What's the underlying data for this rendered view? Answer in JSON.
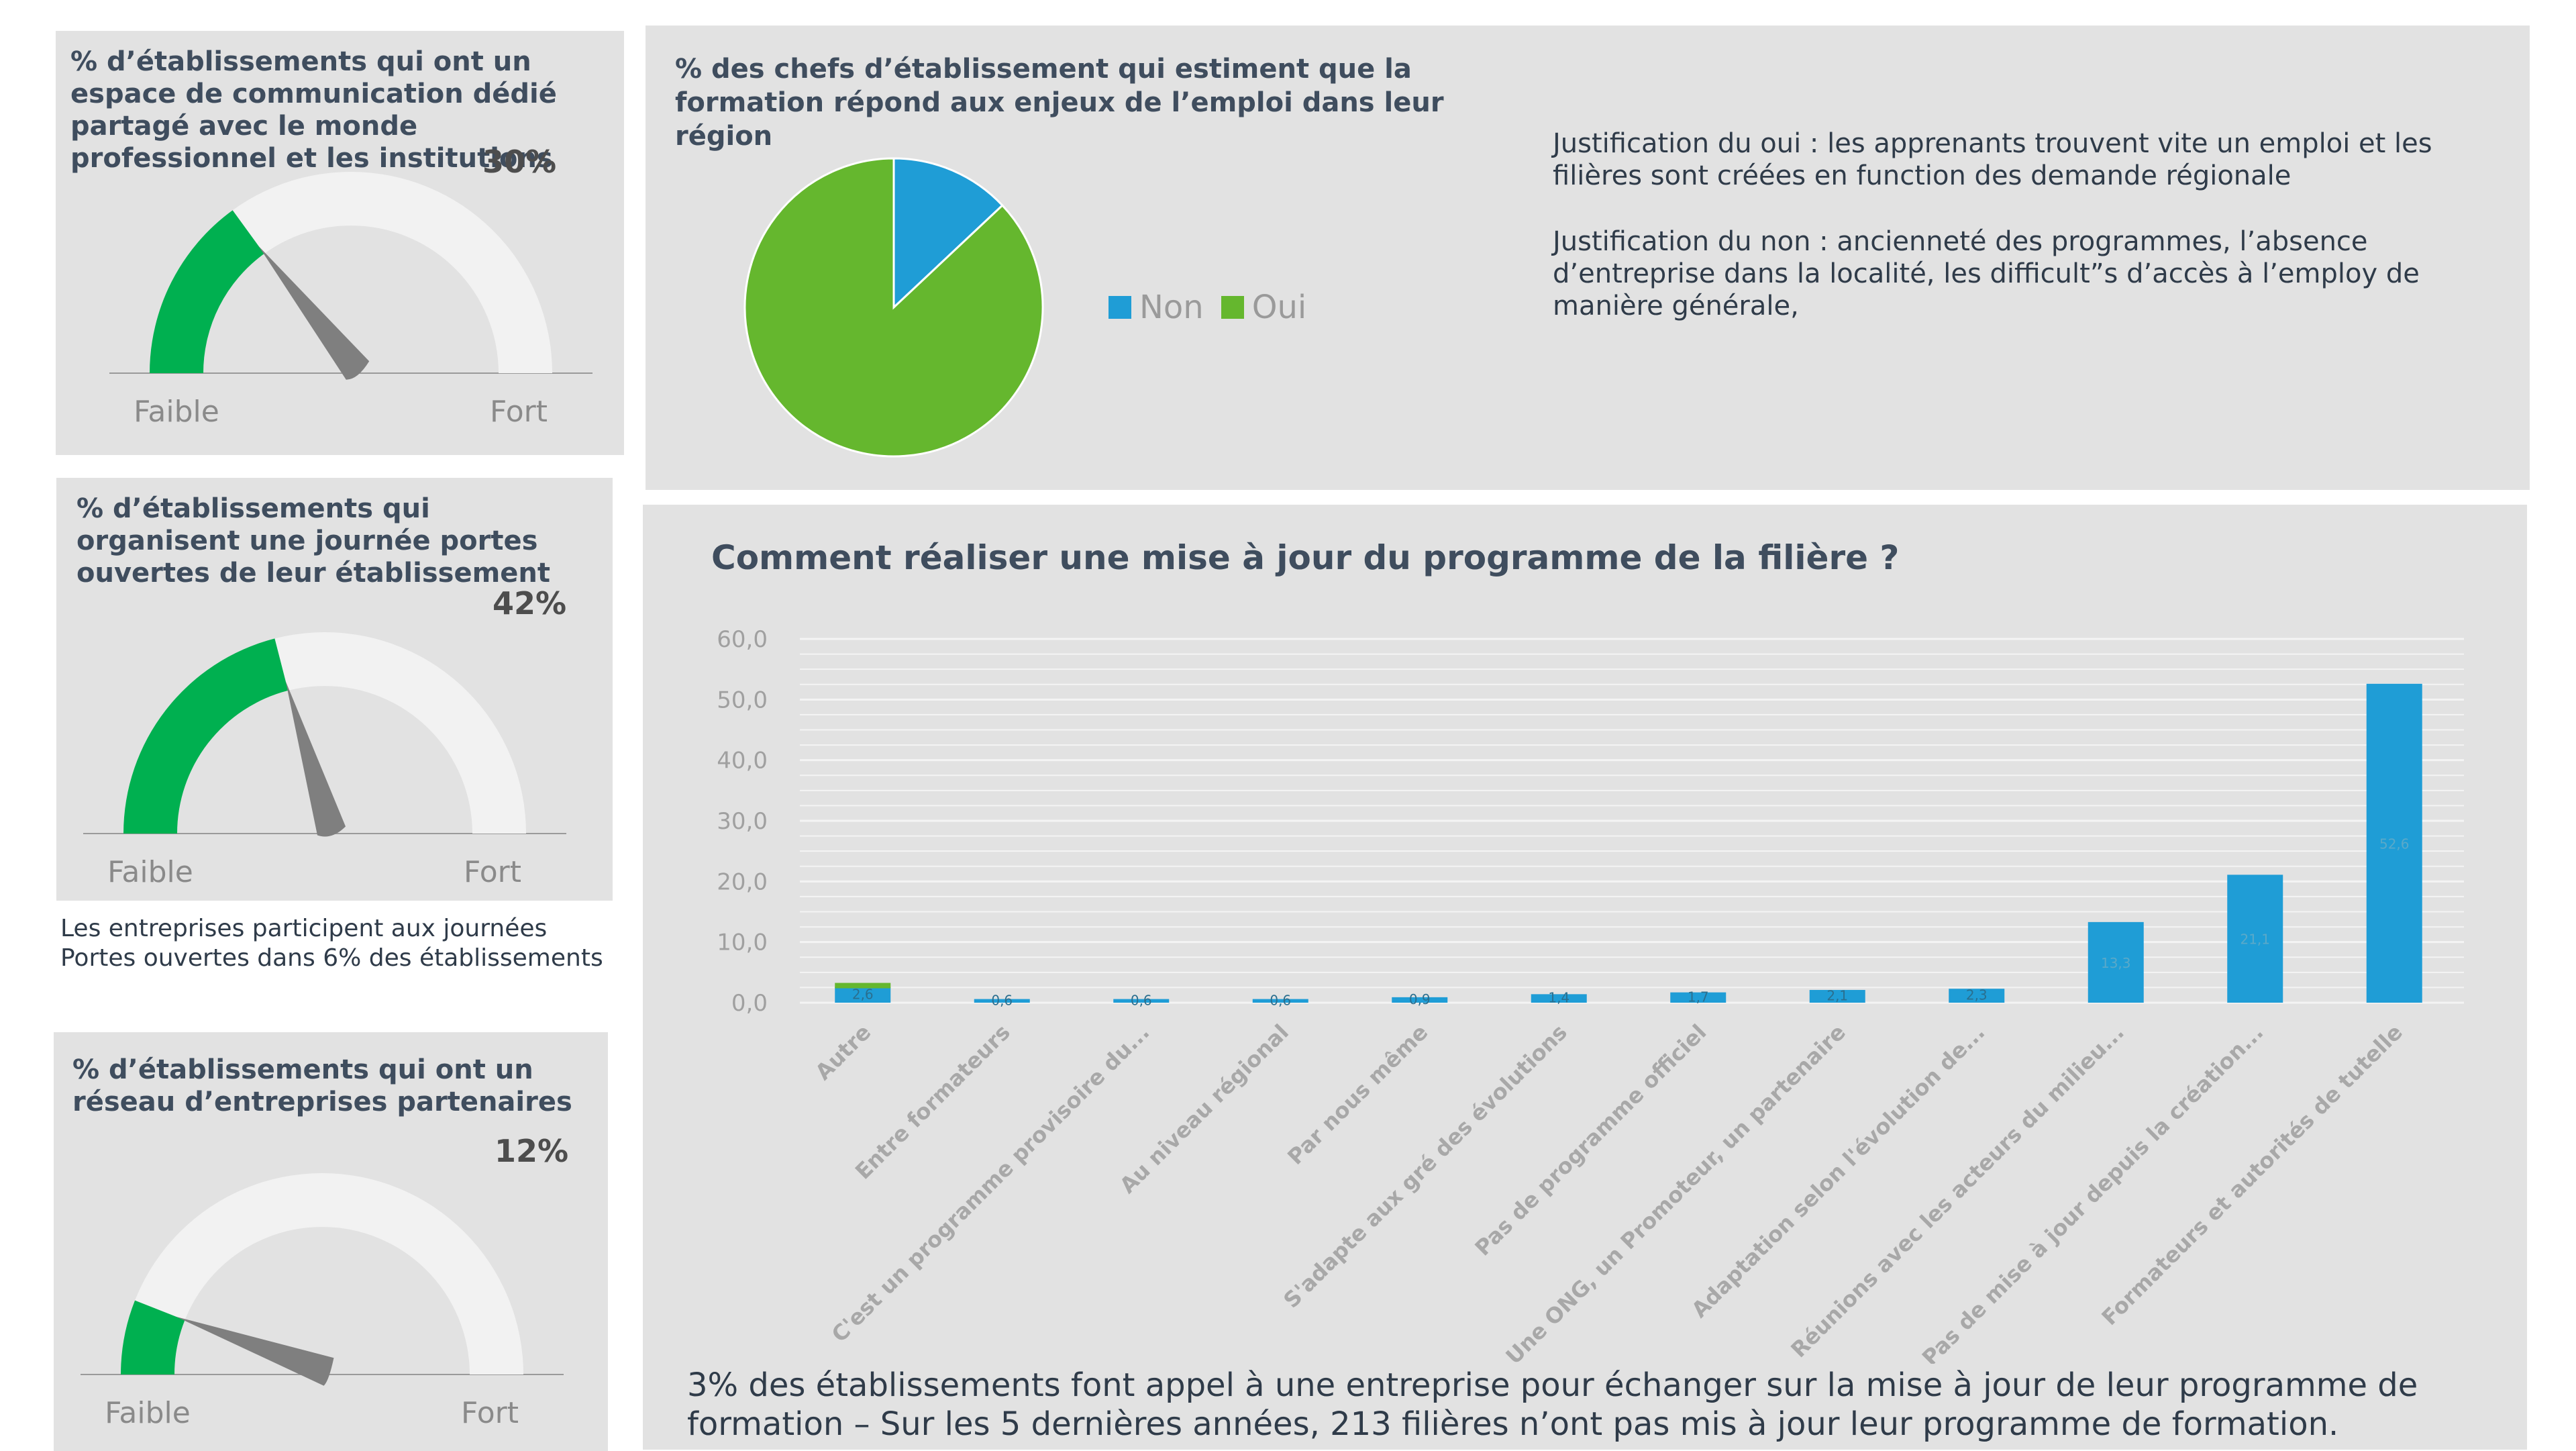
{
  "gauges": [
    {
      "title": "%  d’établissements qui ont un espace de communication dédié partagé avec le monde professionnel et les institutions",
      "percent_label": "30%",
      "value": 0.3,
      "low_label": "Faible",
      "high_label": "Fort"
    },
    {
      "title": "% d’établissements qui  organisent une journée portes ouvertes de leur établissement",
      "percent_label": "42%",
      "value": 0.42,
      "low_label": "Faible",
      "high_label": "Fort",
      "note": "Les entreprises participent aux journées Portes ouvertes dans 6% des établissements"
    },
    {
      "title": "% d’établissements qui ont un réseau d’entreprises partenaires",
      "percent_label": "12%",
      "value": 0.12,
      "low_label": "Faible",
      "high_label": "Fort"
    }
  ],
  "colors": {
    "panel": "#e2e2e2",
    "gauge_fill": "#00b050",
    "gauge_track": "#f2f2f2",
    "needle": "#7f7f7f",
    "pie_non": "#1f9dd6",
    "pie_oui": "#65b72e",
    "bar": "#1f9dd6",
    "bar_top_autre": "#65b72e"
  },
  "pie": {
    "title": "% des chefs d’établissement qui estiment que la formation répond aux enjeux de l’emploi dans leur région",
    "legend": [
      {
        "name": "Non",
        "color_key": "pie_non"
      },
      {
        "name": "Oui",
        "color_key": "pie_oui"
      }
    ],
    "justification_oui": "Justification du oui : les apprenants trouvent vite un emploi et les filières sont créées en function des demande régionale",
    "justification_non": "Justification du non : ancienneté des programmes, l’absence d’entreprise dans la localité, les difficult”s d’accès à l’employ de manière générale,"
  },
  "chart_data": [
    {
      "type": "pie",
      "categories": [
        "Non",
        "Oui"
      ],
      "values": [
        13,
        87
      ]
    },
    {
      "type": "bar",
      "title": "Comment réaliser une mise à jour du programme de la filière ?",
      "categories": [
        "Autre",
        "Entre formateurs",
        "C'est un programme provisoire du...",
        "Au niveau régional",
        "Par nous même",
        "S'adapte aux gré des évolutions",
        "Pas de programme officiel",
        "Une ONG, un Promoteur, un partenaire",
        "Adaptation selon l'évolution de...",
        "Réunions avec les acteurs du milieu...",
        "Pas de mise à jour depuis la création...",
        "Formateurs et autorités de tutelle"
      ],
      "values": [
        2.6,
        0.6,
        0.6,
        0.6,
        0.9,
        1.4,
        1.7,
        2.1,
        2.3,
        13.3,
        21.1,
        52.6
      ],
      "value_labels": [
        "2,6",
        "0,6",
        "0,6",
        "0,6",
        "0,9",
        "1,4",
        "1,7",
        "2,1",
        "2,3",
        "13,3",
        "21,1",
        "52,6"
      ],
      "y_ticks": [
        "0,0",
        "10,0",
        "20,0",
        "30,0",
        "40,0",
        "50,0",
        "60,0"
      ],
      "ylim": [
        0,
        60
      ],
      "grid": true
    }
  ],
  "footer": "3% des établissements font appel à une entreprise pour échanger sur la mise à jour de leur programme de formation – Sur les 5 dernières années, 213 filières n’ont pas mis à jour leur programme de formation."
}
